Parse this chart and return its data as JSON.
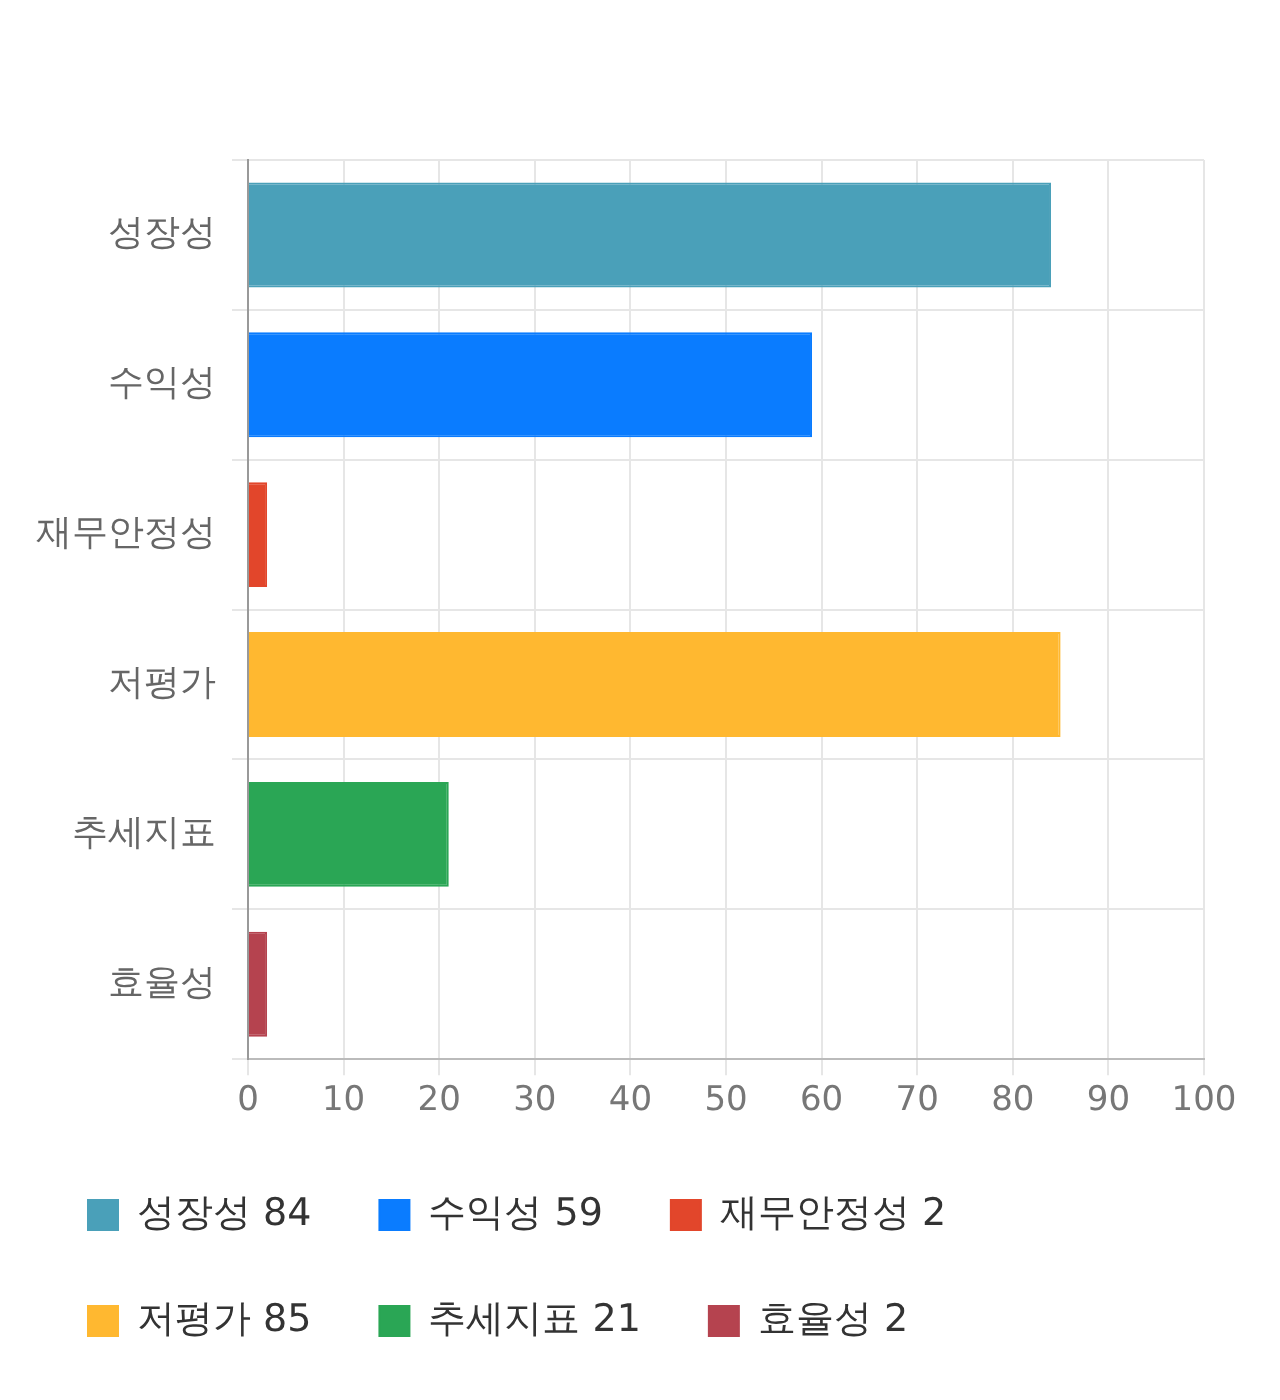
{
  "chart_data": {
    "type": "bar",
    "orientation": "horizontal",
    "stacked": true,
    "categories": [
      "성장성",
      "수익성",
      "재무안정성",
      "저평가",
      "추세지표",
      "효율성"
    ],
    "series": [
      {
        "name": "성장성 84",
        "color": "#4aa0b9",
        "values": [
          84,
          null,
          null,
          null,
          null,
          null
        ]
      },
      {
        "name": "수익성 59",
        "color": "#0a7cff",
        "values": [
          null,
          59,
          null,
          null,
          null,
          null
        ]
      },
      {
        "name": "재무안정성 2",
        "color": "#e2462b",
        "values": [
          null,
          null,
          2,
          null,
          null,
          null
        ]
      },
      {
        "name": "저평가 85",
        "color": "#ffb830",
        "values": [
          null,
          null,
          null,
          85,
          null,
          null
        ]
      },
      {
        "name": "추세지표 21",
        "color": "#2aa655",
        "values": [
          null,
          null,
          null,
          null,
          21,
          null
        ]
      },
      {
        "name": "효율성 2",
        "color": "#b5434f",
        "values": [
          null,
          null,
          null,
          null,
          null,
          2
        ]
      }
    ],
    "xlim": [
      0,
      100
    ],
    "xticks": [
      0,
      10,
      20,
      30,
      40,
      50,
      60,
      70,
      80,
      90,
      100
    ],
    "grid": true,
    "legend": "bottom"
  }
}
